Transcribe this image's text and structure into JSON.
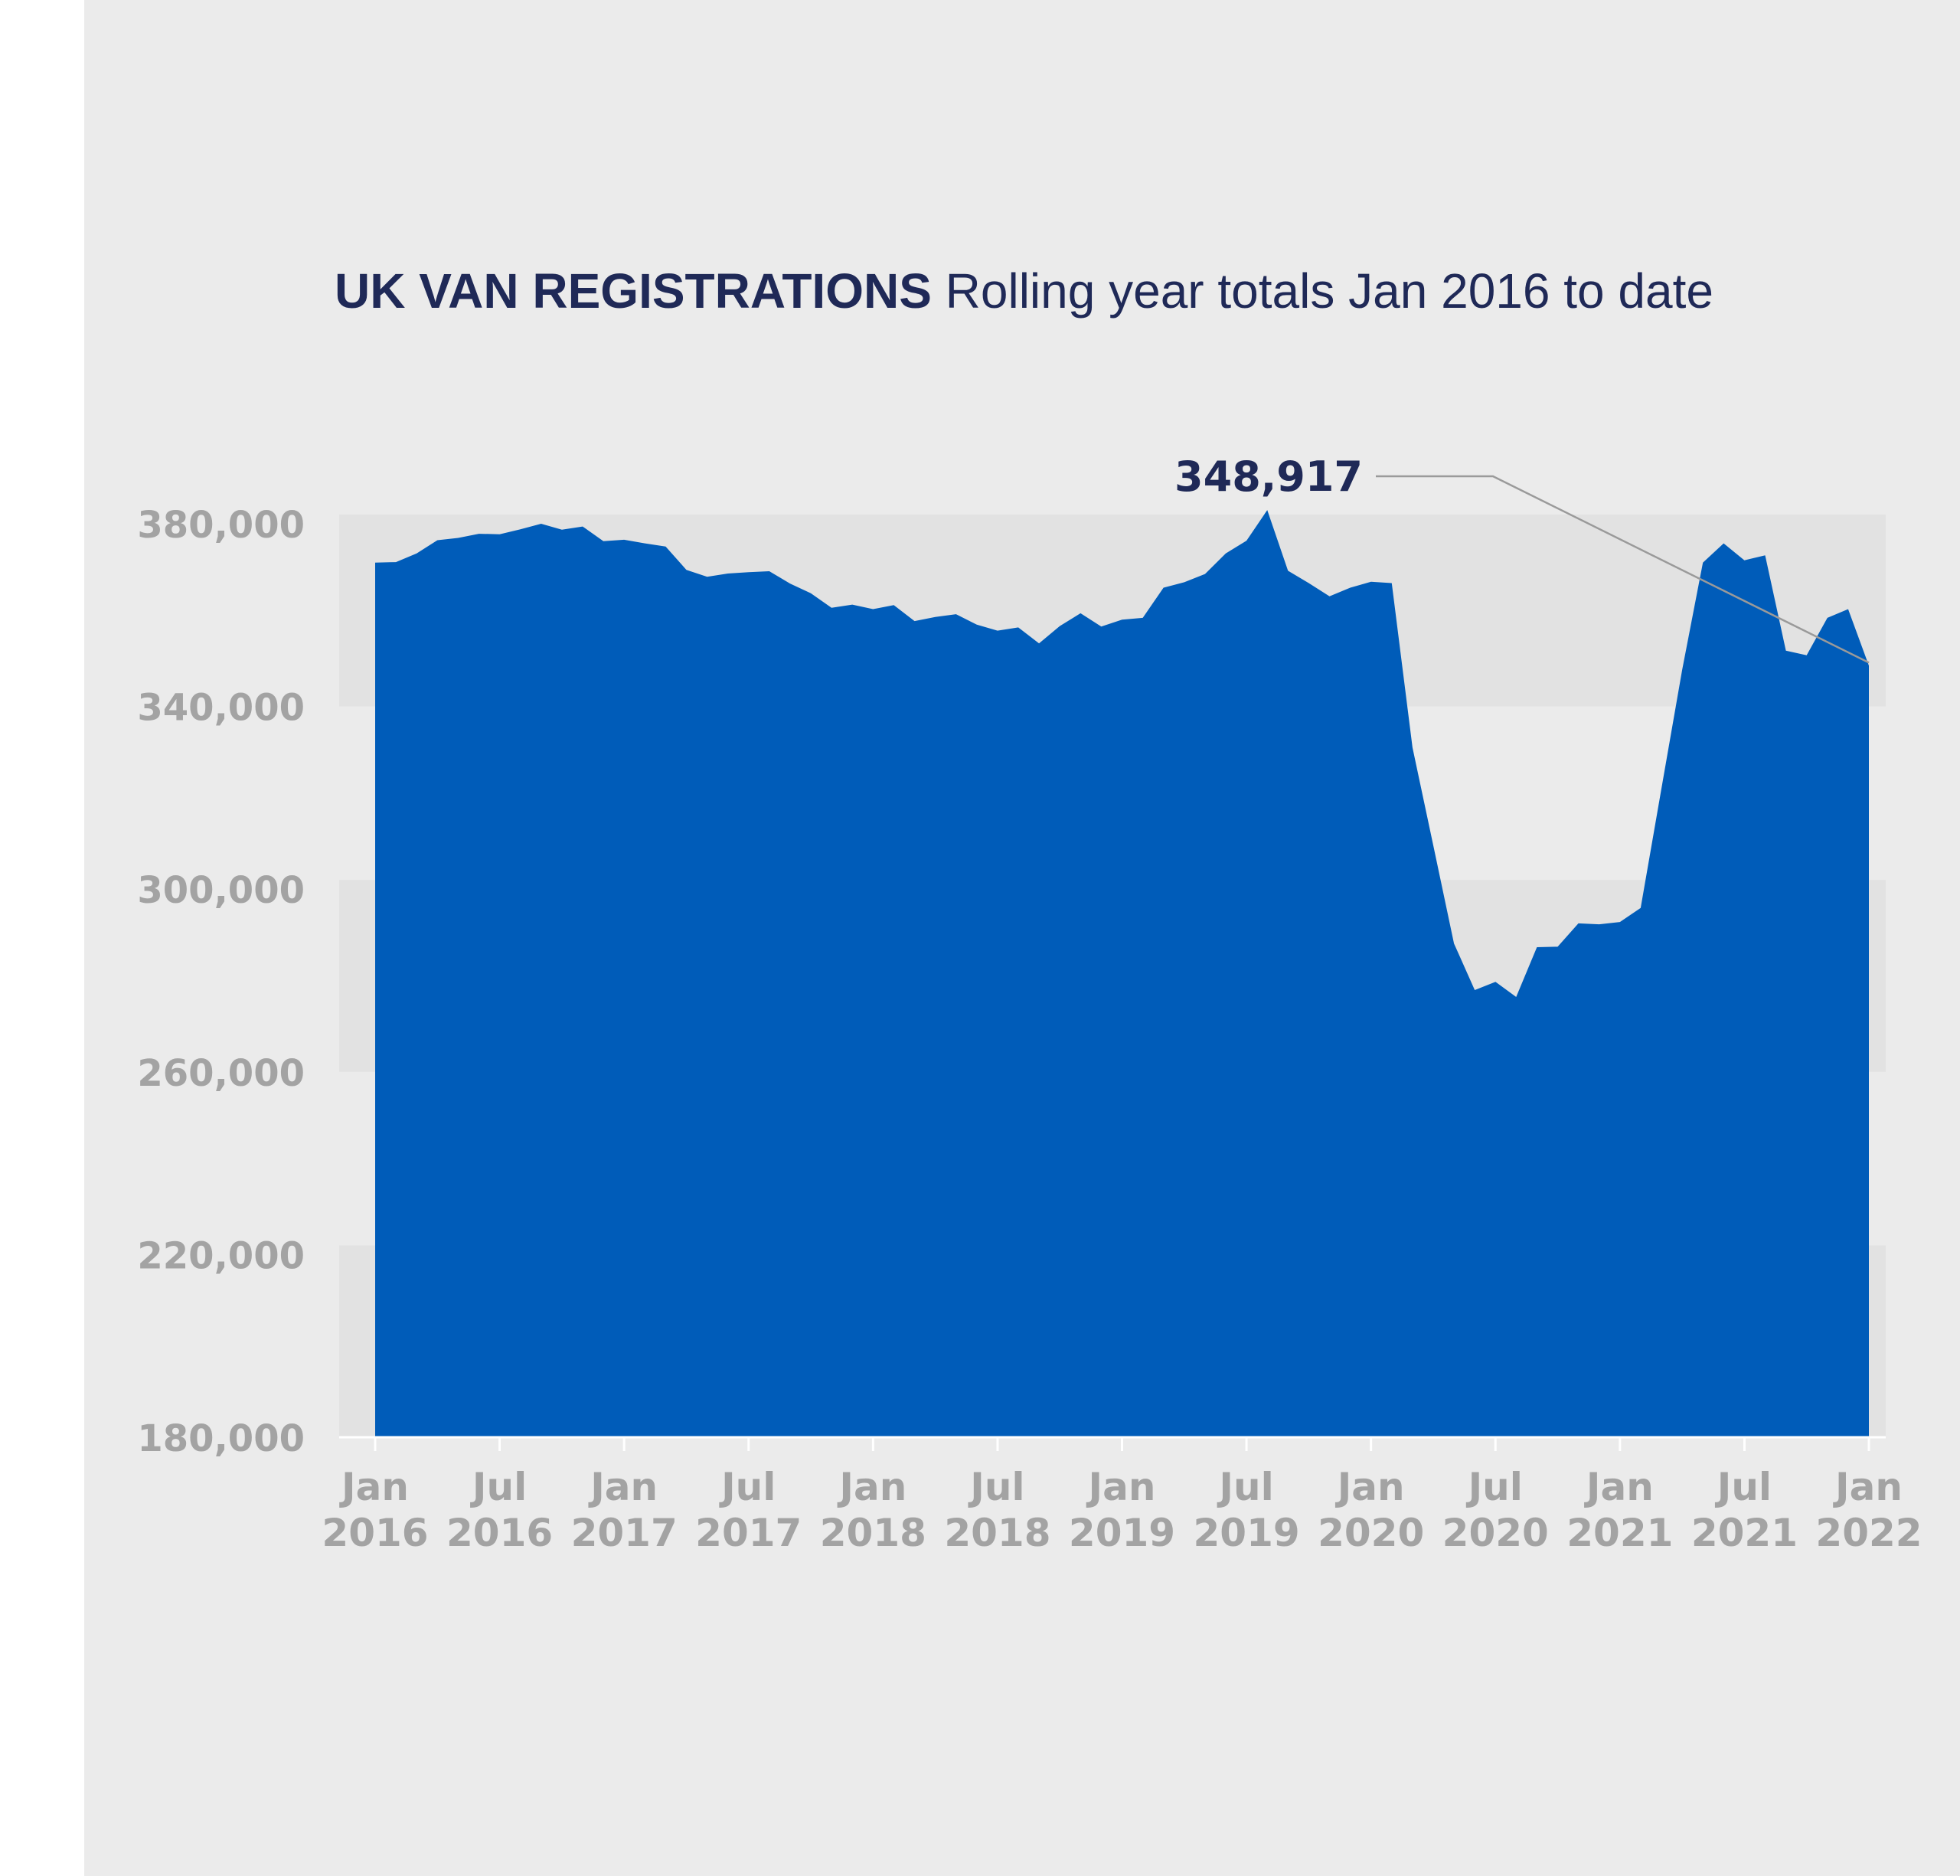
{
  "header": {
    "title_bold": "UK VAN REGISTRATIONS",
    "title_light": "Rolling year totals Jan 2016 to date"
  },
  "colors": {
    "background": "#ebebeb",
    "band": "#e2e2e2",
    "area": "#005cb9",
    "text_dark": "#1f2957",
    "text_grey": "#a3a3a3"
  },
  "chart_data": {
    "type": "area",
    "title": "UK VAN REGISTRATIONS Rolling year totals Jan 2016 to date",
    "xlabel": "",
    "ylabel": "",
    "ylim": [
      180000,
      380000
    ],
    "yticks": [
      180000,
      220000,
      260000,
      300000,
      340000,
      380000
    ],
    "ytick_labels": [
      "180,000",
      "220,000",
      "260,000",
      "300,000",
      "340,000",
      "380,000"
    ],
    "grid": false,
    "legend": "none",
    "x_ticks": [
      {
        "month": "Jan",
        "year": "2016",
        "date": "2016-01"
      },
      {
        "month": "Jul",
        "year": "2016",
        "date": "2016-07"
      },
      {
        "month": "Jan",
        "year": "2017",
        "date": "2017-01"
      },
      {
        "month": "Jul",
        "year": "2017",
        "date": "2017-07"
      },
      {
        "month": "Jan",
        "year": "2018",
        "date": "2018-01"
      },
      {
        "month": "Jul",
        "year": "2018",
        "date": "2018-07"
      },
      {
        "month": "Jan",
        "year": "2019",
        "date": "2019-01"
      },
      {
        "month": "Jul",
        "year": "2019",
        "date": "2019-07"
      },
      {
        "month": "Jan",
        "year": "2020",
        "date": "2020-01"
      },
      {
        "month": "Jul",
        "year": "2020",
        "date": "2020-07"
      },
      {
        "month": "Jan",
        "year": "2021",
        "date": "2021-01"
      },
      {
        "month": "Jul",
        "year": "2021",
        "date": "2021-07"
      },
      {
        "month": "Jan",
        "year": "2022",
        "date": "2022-01"
      }
    ],
    "x": [
      "2016-01",
      "2016-02",
      "2016-03",
      "2016-04",
      "2016-05",
      "2016-06",
      "2016-07",
      "2016-08",
      "2016-09",
      "2016-10",
      "2016-11",
      "2016-12",
      "2017-01",
      "2017-02",
      "2017-03",
      "2017-04",
      "2017-05",
      "2017-06",
      "2017-07",
      "2017-08",
      "2017-09",
      "2017-10",
      "2017-11",
      "2017-12",
      "2018-01",
      "2018-02",
      "2018-03",
      "2018-04",
      "2018-05",
      "2018-06",
      "2018-07",
      "2018-08",
      "2018-09",
      "2018-10",
      "2018-11",
      "2018-12",
      "2019-01",
      "2019-02",
      "2019-03",
      "2019-04",
      "2019-05",
      "2019-06",
      "2019-07",
      "2019-08",
      "2019-09",
      "2019-10",
      "2019-11",
      "2019-12",
      "2020-01",
      "2020-02",
      "2020-03",
      "2020-04",
      "2020-05",
      "2020-06",
      "2020-07",
      "2020-08",
      "2020-09",
      "2020-10",
      "2020-11",
      "2020-12",
      "2021-01",
      "2021-02",
      "2021-03",
      "2021-04",
      "2021-05",
      "2021-06",
      "2021-07",
      "2021-08",
      "2021-09",
      "2021-10",
      "2021-11",
      "2021-12",
      "2022-01"
    ],
    "series": [
      {
        "values": [
          371500,
          371600,
          373500,
          376400,
          376900,
          377800,
          377700,
          378800,
          380000,
          378700,
          379400,
          376200,
          376500,
          375700,
          375000,
          369900,
          368400,
          369100,
          369400,
          369600,
          366900,
          364800,
          361600,
          362300,
          361300,
          362200,
          358700,
          359600,
          360200,
          357900,
          356600,
          357300,
          353800,
          357600,
          360400,
          357500,
          359000,
          359400,
          366000,
          367200,
          369000,
          373500,
          376300,
          383000,
          369700,
          367000,
          364100,
          366000,
          367300,
          367000,
          331000,
          309600,
          288100,
          277900,
          279700,
          276400,
          287300,
          287400,
          292500,
          292300,
          292800,
          295900,
          322000,
          348000,
          371500,
          375700,
          372000,
          373100,
          352200,
          351200,
          359400,
          361300,
          348917
        ]
      }
    ],
    "annotations": [
      {
        "label": "348,917",
        "value": 348917,
        "x": "2022-01"
      }
    ]
  }
}
